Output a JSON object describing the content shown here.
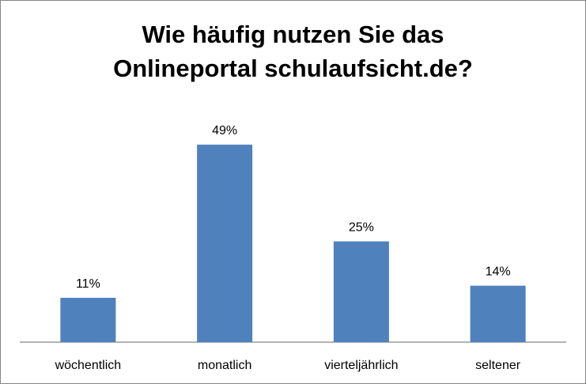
{
  "chart_data": {
    "type": "bar",
    "title_lines": [
      "Wie häufig nutzen Sie das",
      "Onlineportal schulaufsicht.de?"
    ],
    "categories": [
      "wöchentlich",
      "monatlich",
      "vierteljährlich",
      "seltener"
    ],
    "values": [
      11,
      49,
      25,
      14
    ],
    "value_labels": [
      "11%",
      "49%",
      "25%",
      "14%"
    ],
    "ylim": [
      0,
      60
    ],
    "grid": false,
    "legend": "none",
    "colors": {
      "bar": "#4F81BD",
      "axis": "#868686",
      "text": "#000000"
    }
  }
}
